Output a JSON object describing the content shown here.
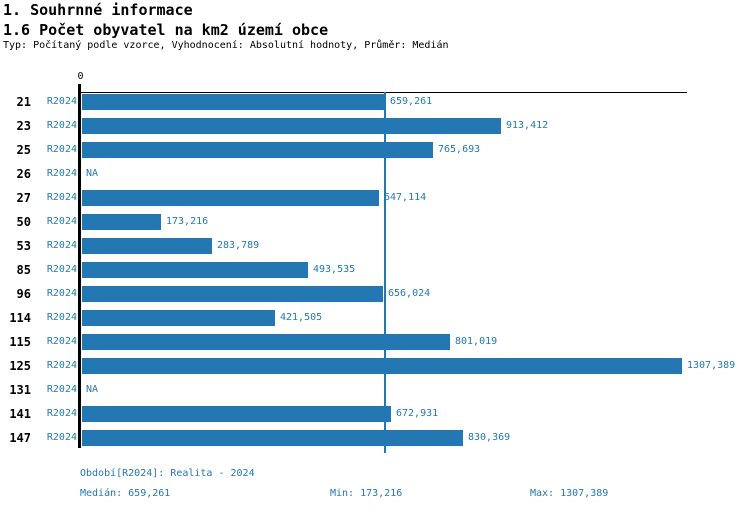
{
  "header": {
    "title": "1. Souhrnné informace",
    "subtitle": "1.6 Počet obyvatel na km2 území obce",
    "meta": "Typ: Počítaný podle vzorce, Vyhodnocení: Absolutní hodnoty, Průměr: Medián"
  },
  "chart_data": {
    "type": "bar",
    "orientation": "horizontal",
    "title": "1.6 Počet obyvatel na km2 území obce",
    "axis_zero_label": "0",
    "categories": [
      "21",
      "23",
      "25",
      "26",
      "27",
      "50",
      "53",
      "85",
      "96",
      "114",
      "115",
      "125",
      "131",
      "141",
      "147"
    ],
    "series_label": "R2024",
    "values": [
      659.261,
      913.412,
      765.693,
      null,
      647.114,
      173.216,
      283.789,
      493.535,
      656.024,
      421.505,
      801.019,
      1307.389,
      null,
      672.931,
      830.369
    ],
    "value_labels": [
      "659,261",
      "913,412",
      "765,693",
      "NA",
      "647,114",
      "173,216",
      "283,789",
      "493,535",
      "656,024",
      "421,505",
      "801,019",
      "1307,389",
      "NA",
      "672,931",
      "830,369"
    ],
    "xlim": [
      0,
      1322
    ],
    "grid": false,
    "median_value": 659.261,
    "bar_color": "#2378b4",
    "value_text_color": "#2378b4",
    "category_text_color": "#000000"
  },
  "footer": {
    "period": "Období[R2024]: Realita - 2024",
    "median": "Medián: 659,261",
    "min": "Min: 173,216",
    "max": "Max: 1307,389"
  }
}
